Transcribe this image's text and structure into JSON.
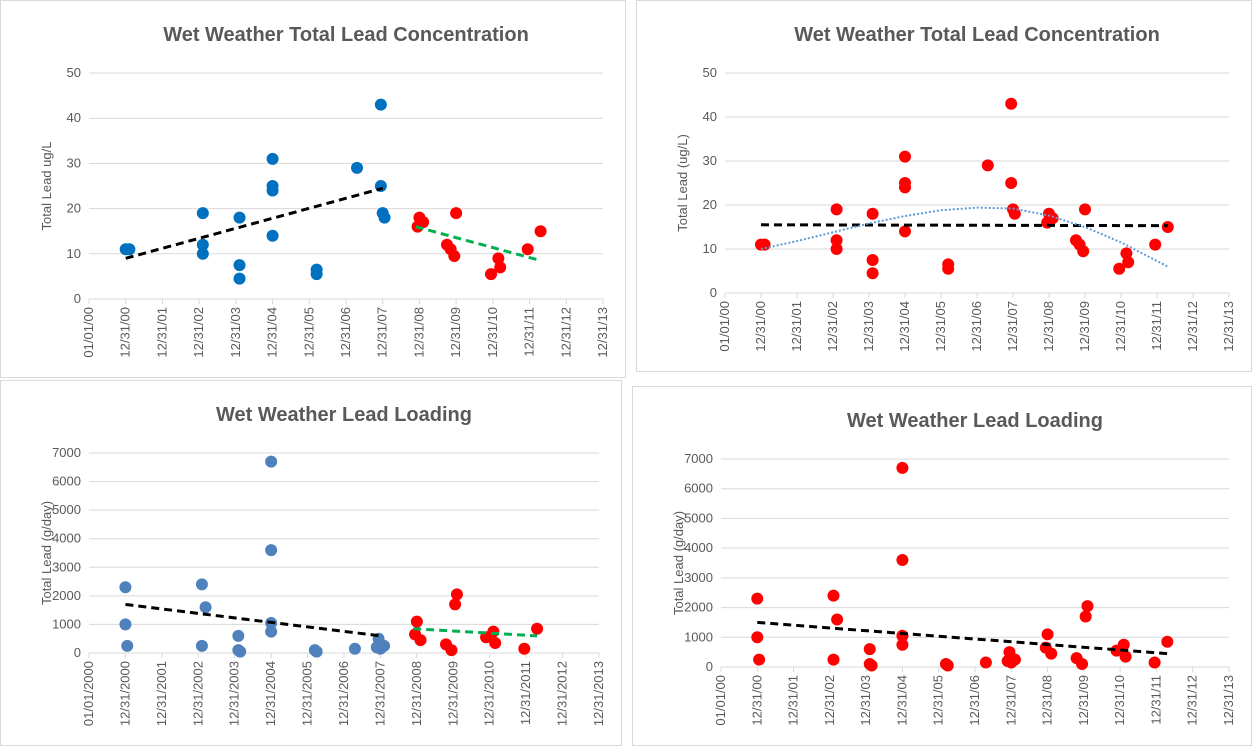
{
  "chart_data": [
    {
      "type": "scatter",
      "title": "Wet Weather Total Lead Concentration",
      "y_label": "Total Lead ug/L",
      "xlim": [
        2000,
        2014
      ],
      "xticks": [
        {
          "value": 2000,
          "label": "01/01/00"
        },
        {
          "value": 2001,
          "label": "12/31/00"
        },
        {
          "value": 2002,
          "label": "12/31/01"
        },
        {
          "value": 2003,
          "label": "12/31/02"
        },
        {
          "value": 2004,
          "label": "12/31/03"
        },
        {
          "value": 2005,
          "label": "12/31/04"
        },
        {
          "value": 2006,
          "label": "12/31/05"
        },
        {
          "value": 2007,
          "label": "12/31/06"
        },
        {
          "value": 2008,
          "label": "12/31/07"
        },
        {
          "value": 2009,
          "label": "12/31/08"
        },
        {
          "value": 2010,
          "label": "12/31/09"
        },
        {
          "value": 2011,
          "label": "12/31/10"
        },
        {
          "value": 2012,
          "label": "12/31/11"
        },
        {
          "value": 2013,
          "label": "12/31/12"
        },
        {
          "value": 2014,
          "label": "12/31/13"
        }
      ],
      "ylim": [
        0,
        50
      ],
      "yticks": [
        0,
        10,
        20,
        30,
        40,
        50
      ],
      "grid": true,
      "series": [
        {
          "style": "marker",
          "color": "#0070c0",
          "x": [
            2001.0,
            2001.1,
            2003.1,
            2003.1,
            2003.1,
            2004.1,
            2004.1,
            2004.1,
            2005.0,
            2005.0,
            2005.0,
            2005.0,
            2006.2,
            2006.2,
            2007.3,
            2007.95,
            2007.95,
            2008.0,
            2008.05
          ],
          "values": [
            11,
            11,
            19,
            12,
            10,
            18,
            7.5,
            4.5,
            31,
            25,
            24,
            14,
            6.5,
            5.5,
            29,
            43,
            25,
            19,
            18
          ]
        },
        {
          "style": "marker",
          "color": "#ff0000",
          "x": [
            2008.95,
            2009.0,
            2009.1,
            2009.75,
            2009.85,
            2009.95,
            2010.0,
            2010.95,
            2011.15,
            2011.2,
            2011.95,
            2012.3
          ],
          "values": [
            16,
            18,
            17,
            12,
            11,
            9.5,
            19,
            5.5,
            9,
            7,
            11,
            15
          ]
        },
        {
          "style": "dashed",
          "color": "#000000",
          "x": [
            2001.0,
            2008.0
          ],
          "values": [
            9,
            24.5
          ]
        },
        {
          "style": "dashed",
          "color": "#00b050",
          "x": [
            2008.9,
            2012.3
          ],
          "values": [
            16,
            8.5
          ]
        }
      ]
    },
    {
      "type": "scatter",
      "title": "Wet Weather Total Lead Concentration",
      "y_label": "Total Lead (ug/L)",
      "xlim": [
        2000,
        2014
      ],
      "xticks": [
        {
          "value": 2000,
          "label": "01/01/00"
        },
        {
          "value": 2001,
          "label": "12/31/00"
        },
        {
          "value": 2002,
          "label": "12/31/01"
        },
        {
          "value": 2003,
          "label": "12/31/02"
        },
        {
          "value": 2004,
          "label": "12/31/03"
        },
        {
          "value": 2005,
          "label": "12/31/04"
        },
        {
          "value": 2006,
          "label": "12/31/05"
        },
        {
          "value": 2007,
          "label": "12/31/06"
        },
        {
          "value": 2008,
          "label": "12/31/07"
        },
        {
          "value": 2009,
          "label": "12/31/08"
        },
        {
          "value": 2010,
          "label": "12/31/09"
        },
        {
          "value": 2011,
          "label": "12/31/10"
        },
        {
          "value": 2012,
          "label": "12/31/11"
        },
        {
          "value": 2013,
          "label": "12/31/12"
        },
        {
          "value": 2014,
          "label": "12/31/13"
        }
      ],
      "ylim": [
        0,
        50
      ],
      "yticks": [
        0,
        10,
        20,
        30,
        40,
        50
      ],
      "grid": true,
      "series": [
        {
          "style": "marker",
          "color": "#ff0000",
          "x": [
            2001.0,
            2001.1,
            2003.1,
            2003.1,
            2003.1,
            2004.1,
            2004.1,
            2004.1,
            2005.0,
            2005.0,
            2005.0,
            2005.0,
            2006.2,
            2006.2,
            2007.3,
            2007.95,
            2007.95,
            2008.0,
            2008.05,
            2008.95,
            2009.0,
            2009.1,
            2009.75,
            2009.85,
            2009.95,
            2010.0,
            2010.95,
            2011.15,
            2011.2,
            2011.95,
            2012.3
          ],
          "values": [
            11,
            11,
            19,
            12,
            10,
            18,
            7.5,
            4.5,
            31,
            25,
            24,
            14,
            6.5,
            5.5,
            29,
            43,
            25,
            19,
            18,
            16,
            18,
            17,
            12,
            11,
            9.5,
            19,
            5.5,
            9,
            7,
            11,
            15
          ]
        },
        {
          "style": "dashed",
          "color": "#000000",
          "x": [
            2001.0,
            2012.3
          ],
          "values": [
            15.5,
            15.3
          ]
        },
        {
          "style": "dotted",
          "color": "#5b9bd5",
          "x": [
            2001.0,
            2002.0,
            2003.0,
            2004.0,
            2005.0,
            2006.0,
            2007.0,
            2008.0,
            2009.0,
            2010.0,
            2011.0,
            2012.3
          ],
          "values": [
            10,
            11.8,
            13.8,
            15.8,
            17.5,
            18.8,
            19.4,
            19.2,
            17.6,
            15,
            11.5,
            6
          ]
        }
      ]
    },
    {
      "type": "scatter",
      "title": "Wet Weather Lead Loading",
      "y_label": "Total Lead (g/day)",
      "xlim": [
        2000,
        2014
      ],
      "xticks": [
        {
          "value": 2000,
          "label": "01/01/2000"
        },
        {
          "value": 2001,
          "label": "12/31/2000"
        },
        {
          "value": 2002,
          "label": "12/31/2001"
        },
        {
          "value": 2003,
          "label": "12/31/2002"
        },
        {
          "value": 2004,
          "label": "12/31/2003"
        },
        {
          "value": 2005,
          "label": "12/31/2004"
        },
        {
          "value": 2006,
          "label": "12/31/2005"
        },
        {
          "value": 2007,
          "label": "12/31/2006"
        },
        {
          "value": 2008,
          "label": "12/31/2007"
        },
        {
          "value": 2009,
          "label": "12/31/2008"
        },
        {
          "value": 2010,
          "label": "12/31/2009"
        },
        {
          "value": 2011,
          "label": "12/31/2010"
        },
        {
          "value": 2012,
          "label": "12/31/2011"
        },
        {
          "value": 2013,
          "label": "12/31/2012"
        },
        {
          "value": 2014,
          "label": "12/31/2013"
        }
      ],
      "ylim": [
        0,
        7000
      ],
      "yticks": [
        0,
        1000,
        2000,
        3000,
        4000,
        5000,
        6000,
        7000
      ],
      "grid": true,
      "series": [
        {
          "style": "marker",
          "color": "#4f81bd",
          "x": [
            2001.0,
            2001.0,
            2001.05,
            2003.1,
            2003.2,
            2003.1,
            2004.1,
            2004.1,
            2004.15,
            2005.0,
            2005.0,
            2005.0,
            2005.0,
            2006.2,
            2006.25,
            2007.3,
            2007.95,
            2008.0,
            2007.9,
            2008.1
          ],
          "values": [
            2300,
            1000,
            250,
            2400,
            1600,
            250,
            600,
            100,
            50,
            6700,
            3600,
            1050,
            750,
            100,
            50,
            150,
            500,
            150,
            200,
            250
          ]
        },
        {
          "style": "marker",
          "color": "#ff0000",
          "x": [
            2008.95,
            2009.0,
            2009.1,
            2009.8,
            2010.1,
            2010.05,
            2009.95,
            2010.9,
            2011.1,
            2011.15,
            2011.95,
            2012.3
          ],
          "values": [
            650,
            1100,
            450,
            300,
            2050,
            1700,
            100,
            550,
            750,
            350,
            150,
            850
          ]
        },
        {
          "style": "dashed",
          "color": "#000000",
          "x": [
            2001.0,
            2008.0
          ],
          "values": [
            1700,
            600
          ]
        },
        {
          "style": "dashed",
          "color": "#00b050",
          "x": [
            2008.9,
            2012.3
          ],
          "values": [
            850,
            600
          ]
        }
      ]
    },
    {
      "type": "scatter",
      "title": "Wet Weather Lead Loading",
      "y_label": "Total Lead (g/day)",
      "xlim": [
        2000,
        2014
      ],
      "xticks": [
        {
          "value": 2000,
          "label": "01/01/00"
        },
        {
          "value": 2001,
          "label": "12/31/00"
        },
        {
          "value": 2002,
          "label": "12/31/01"
        },
        {
          "value": 2003,
          "label": "12/31/02"
        },
        {
          "value": 2004,
          "label": "12/31/03"
        },
        {
          "value": 2005,
          "label": "12/31/04"
        },
        {
          "value": 2006,
          "label": "12/31/05"
        },
        {
          "value": 2007,
          "label": "12/31/06"
        },
        {
          "value": 2008,
          "label": "12/31/07"
        },
        {
          "value": 2009,
          "label": "12/31/08"
        },
        {
          "value": 2010,
          "label": "12/31/09"
        },
        {
          "value": 2011,
          "label": "12/31/10"
        },
        {
          "value": 2012,
          "label": "12/31/11"
        },
        {
          "value": 2013,
          "label": "12/31/12"
        },
        {
          "value": 2014,
          "label": "12/31/13"
        }
      ],
      "ylim": [
        0,
        7000
      ],
      "yticks": [
        0,
        1000,
        2000,
        3000,
        4000,
        5000,
        6000,
        7000
      ],
      "grid": true,
      "series": [
        {
          "style": "marker",
          "color": "#ff0000",
          "x": [
            2001.0,
            2001.0,
            2001.05,
            2003.1,
            2003.2,
            2003.1,
            2004.1,
            2004.1,
            2004.15,
            2005.0,
            2005.0,
            2005.0,
            2005.0,
            2006.2,
            2006.25,
            2007.3,
            2007.95,
            2008.0,
            2007.9,
            2008.1,
            2008.95,
            2009.0,
            2009.1,
            2009.8,
            2010.1,
            2010.05,
            2009.95,
            2010.9,
            2011.1,
            2011.15,
            2011.95,
            2012.3
          ],
          "values": [
            2300,
            1000,
            250,
            2400,
            1600,
            250,
            600,
            100,
            50,
            6700,
            3600,
            1050,
            750,
            100,
            50,
            150,
            500,
            150,
            200,
            250,
            650,
            1100,
            450,
            300,
            2050,
            1700,
            100,
            550,
            750,
            350,
            150,
            850
          ]
        },
        {
          "style": "dashed",
          "color": "#000000",
          "x": [
            2001.0,
            2012.3
          ],
          "values": [
            1500,
            450
          ]
        }
      ]
    }
  ]
}
